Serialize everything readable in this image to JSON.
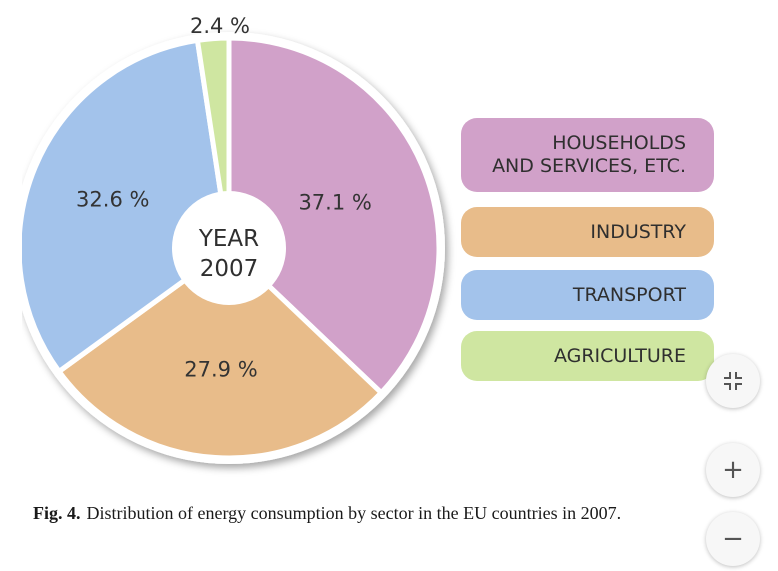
{
  "chart_data": {
    "type": "pie",
    "center_label": [
      "YEAR",
      "2007"
    ],
    "slices": [
      {
        "name": "HOUSEHOLDS\nAND SERVICES, ETC.",
        "value": 37.1,
        "label": "37.1 %",
        "color": "#d1a1c9"
      },
      {
        "name": "INDUSTRY",
        "value": 27.9,
        "label": "27.9 %",
        "color": "#e8bc8a"
      },
      {
        "name": "TRANSPORT",
        "value": 32.6,
        "label": "32.6 %",
        "color": "#a3c3eb"
      },
      {
        "name": "AGRICULTURE",
        "value": 2.4,
        "label": "2.4 %",
        "color": "#cfe6a1"
      }
    ],
    "legend_placement": "right",
    "caption_prefix": "Fig. 4.",
    "caption_text": "Distribution of energy consumption by sector in the EU countries in 2007."
  },
  "viewer_controls": {
    "collapse_icon": "collapse-icon",
    "zoom_in_icon": "plus-icon",
    "zoom_out_icon": "minus-icon",
    "zoom_in_glyph": "+",
    "zoom_out_glyph": "−"
  }
}
